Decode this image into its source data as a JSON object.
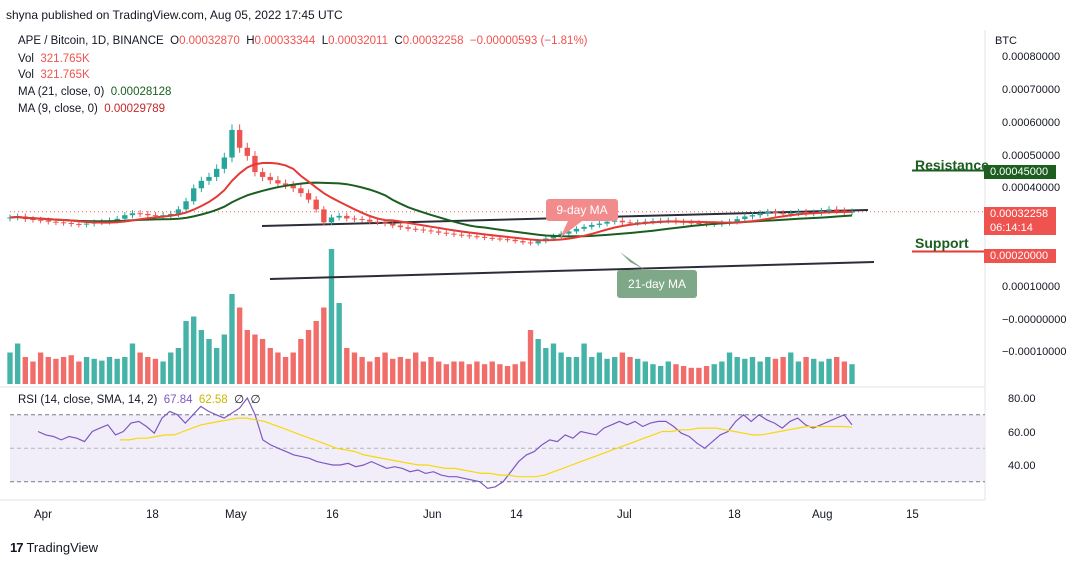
{
  "header": {
    "published": "shyna published on TradingView.com, Aug 05, 2022 17:45 UTC"
  },
  "legend": {
    "symbol": "APE / Bitcoin, 1D, BINANCE",
    "o_label": "O",
    "o_val": "0.00032870",
    "h_label": "H",
    "h_val": "0.00033344",
    "l_label": "L",
    "l_val": "0.00032011",
    "c_label": "C",
    "c_val": "0.00032258",
    "change": "−0.00000593 (−1.81%)",
    "vol1_label": "Vol",
    "vol1_val": "321.765K",
    "vol2_label": "Vol",
    "vol2_val": "321.765K",
    "ma21_label": "MA (21, close, 0)",
    "ma21_val": "0.00028128",
    "ma9_label": "MA (9, close, 0)",
    "ma9_val": "0.00029789",
    "rsi_label": "RSI (14, close, SMA, 14, 2)",
    "rsi_val": "67.84",
    "rsi_sma": "62.58",
    "rsi_x1": "∅",
    "rsi_x2": "∅"
  },
  "axis": {
    "currency": "BTC",
    "y_labels": [
      "0.00080000",
      "0.00070000",
      "0.00060000",
      "0.00050000",
      "0.00040000",
      "0.00010000",
      "−0.00000000",
      "−0.00010000"
    ],
    "rsi_labels": [
      "80.00",
      "60.00",
      "40.00"
    ],
    "x_labels": [
      "Apr",
      "18",
      "May",
      "16",
      "Jun",
      "14",
      "Jul",
      "18",
      "Aug",
      "15"
    ]
  },
  "price_tags": {
    "resistance_value": "0.00045000",
    "current_value": "0.00032258",
    "countdown": "06:14:14",
    "support_value": "0.00020000"
  },
  "annotations": {
    "resistance": "Resistance",
    "support": "Support",
    "ma9": "9-day MA",
    "ma21": "21-day MA"
  },
  "colors": {
    "up": "#26a69a",
    "down": "#ef5350",
    "ma9": "#e53935",
    "ma21": "#1b5e20",
    "rsi": "#7e57c2",
    "rsi_sma": "#f5d90a",
    "resistance": "#1b5e20",
    "support": "#e53935"
  },
  "footer": {
    "brand": "TradingView"
  },
  "chart_data": {
    "type": "candlestick",
    "y_axis_unit": "BTC",
    "x_labels": [
      "Apr",
      "18",
      "May",
      "16",
      "Jun",
      "14",
      "Jul",
      "18",
      "Aug",
      "15"
    ],
    "resistance_level": 0.00045,
    "support_level": 0.0002,
    "last_close": 0.00032258,
    "closes": [
      0.000305,
      0.000308,
      0.0003,
      0.000298,
      0.000296,
      0.000292,
      0.00029,
      0.000288,
      0.000285,
      0.000283,
      0.000286,
      0.00029,
      0.000292,
      0.000296,
      0.000301,
      0.000312,
      0.000318,
      0.000316,
      0.000312,
      0.00031,
      0.000312,
      0.000316,
      0.00033,
      0.000355,
      0.000395,
      0.000418,
      0.00043,
      0.000455,
      0.00049,
      0.000575,
      0.00052,
      0.000495,
      0.000445,
      0.00043,
      0.00042,
      0.00041,
      0.000405,
      0.000395,
      0.00038,
      0.00036,
      0.00033,
      0.00029,
      0.000305,
      0.00031,
      0.000302,
      0.0003,
      0.000298,
      0.000292,
      0.00029,
      0.000286,
      0.00028,
      0.000275,
      0.00027,
      0.000268,
      0.000265,
      0.000262,
      0.000258,
      0.000255,
      0.000252,
      0.00025,
      0.000247,
      0.000245,
      0.000242,
      0.00024,
      0.000238,
      0.000236,
      0.000232,
      0.000228,
      0.000225,
      0.000232,
      0.00024,
      0.000248,
      0.000255,
      0.000262,
      0.00027,
      0.000276,
      0.000282,
      0.000286,
      0.000292,
      0.000295,
      0.00029,
      0.000288,
      0.00029,
      0.000292,
      0.000294,
      0.000295,
      0.000296,
      0.000292,
      0.00029,
      0.000288,
      0.000286,
      0.000284,
      0.000285,
      0.000288,
      0.000292,
      0.0003,
      0.000308,
      0.000312,
      0.000318,
      0.000322,
      0.000318,
      0.000316,
      0.000318,
      0.000322,
      0.000318,
      0.00032,
      0.000325,
      0.00033,
      0.000326,
      0.000322,
      0.000323
    ],
    "volumes": [
      0.35,
      0.45,
      0.3,
      0.25,
      0.35,
      0.3,
      0.28,
      0.3,
      0.32,
      0.25,
      0.3,
      0.28,
      0.26,
      0.3,
      0.28,
      0.3,
      0.45,
      0.35,
      0.3,
      0.28,
      0.25,
      0.35,
      0.4,
      0.7,
      0.75,
      0.6,
      0.5,
      0.4,
      0.55,
      1.0,
      0.85,
      0.6,
      0.55,
      0.5,
      0.4,
      0.35,
      0.3,
      0.35,
      0.5,
      0.6,
      0.7,
      0.85,
      1.5,
      0.9,
      0.4,
      0.35,
      0.3,
      0.25,
      0.3,
      0.35,
      0.28,
      0.3,
      0.28,
      0.35,
      0.25,
      0.3,
      0.25,
      0.22,
      0.25,
      0.25,
      0.22,
      0.25,
      0.22,
      0.25,
      0.22,
      0.2,
      0.22,
      0.25,
      0.6,
      0.5,
      0.4,
      0.45,
      0.35,
      0.3,
      0.3,
      0.45,
      0.3,
      0.35,
      0.28,
      0.3,
      0.35,
      0.3,
      0.28,
      0.25,
      0.22,
      0.2,
      0.25,
      0.22,
      0.2,
      0.18,
      0.18,
      0.2,
      0.22,
      0.25,
      0.35,
      0.3,
      0.28,
      0.3,
      0.25,
      0.3,
      0.28,
      0.3,
      0.35,
      0.25,
      0.3,
      0.28,
      0.25,
      0.28,
      0.3,
      0.25,
      0.22
    ],
    "rsi": [
      60,
      58,
      57,
      55,
      57,
      56,
      54,
      60,
      62,
      64,
      58,
      60,
      65,
      66,
      63,
      59,
      68,
      72,
      70,
      65,
      70,
      75,
      72,
      70,
      68,
      71,
      74,
      80,
      70,
      55,
      52,
      50,
      48,
      46,
      45,
      44,
      42,
      41,
      40,
      40,
      41,
      39,
      40,
      42,
      40,
      38,
      39,
      38,
      36,
      37,
      35,
      36,
      34,
      33,
      33,
      32,
      31,
      30,
      26,
      27,
      30,
      36,
      42,
      46,
      48,
      52,
      55,
      54,
      58,
      56,
      60,
      59,
      58,
      62,
      64,
      66,
      64,
      66,
      63,
      65,
      66,
      66,
      63,
      59,
      57,
      53,
      50,
      54,
      58,
      60,
      66,
      70,
      66,
      70,
      67,
      65,
      62,
      66,
      68,
      64,
      62,
      64,
      66,
      68,
      70,
      64
    ],
    "rsi_sma": [
      55,
      55,
      56,
      56,
      57,
      58,
      58,
      60,
      62,
      64,
      65,
      66,
      67,
      68,
      68,
      67,
      66,
      64,
      62,
      60,
      58,
      56,
      54,
      52,
      50,
      49,
      48,
      46,
      45,
      44,
      43,
      42,
      41,
      40,
      40,
      39,
      38,
      38,
      37,
      36,
      35,
      35,
      34,
      34,
      33,
      33,
      33,
      34,
      36,
      38,
      40,
      42,
      44,
      46,
      48,
      50,
      52,
      54,
      56,
      58,
      60,
      60,
      61,
      61,
      62,
      62,
      62,
      61,
      60,
      59,
      58,
      58,
      59,
      60,
      61,
      62,
      63,
      63,
      63,
      63,
      63,
      62.58
    ]
  }
}
